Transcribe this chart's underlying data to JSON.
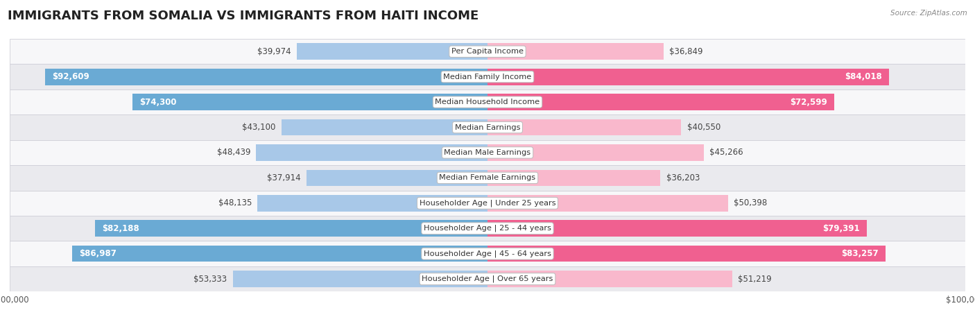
{
  "title": "IMMIGRANTS FROM SOMALIA VS IMMIGRANTS FROM HAITI INCOME",
  "source": "Source: ZipAtlas.com",
  "categories": [
    "Per Capita Income",
    "Median Family Income",
    "Median Household Income",
    "Median Earnings",
    "Median Male Earnings",
    "Median Female Earnings",
    "Householder Age | Under 25 years",
    "Householder Age | 25 - 44 years",
    "Householder Age | 45 - 64 years",
    "Householder Age | Over 65 years"
  ],
  "somalia_values": [
    39974,
    92609,
    74300,
    43100,
    48439,
    37914,
    48135,
    82188,
    86987,
    53333
  ],
  "haiti_values": [
    36849,
    84018,
    72599,
    40550,
    45266,
    36203,
    50398,
    79391,
    83257,
    51219
  ],
  "somalia_labels": [
    "$39,974",
    "$92,609",
    "$74,300",
    "$43,100",
    "$48,439",
    "$37,914",
    "$48,135",
    "$82,188",
    "$86,987",
    "$53,333"
  ],
  "haiti_labels": [
    "$36,849",
    "$84,018",
    "$72,599",
    "$40,550",
    "$45,266",
    "$36,203",
    "$50,398",
    "$79,391",
    "$83,257",
    "$51,219"
  ],
  "max_value": 100000,
  "somalia_color_light": "#a8c8e8",
  "somalia_color_dark": "#6aaad4",
  "haiti_color_light": "#f9b8cc",
  "haiti_color_dark": "#f06090",
  "somalia_threshold": 60000,
  "haiti_threshold": 60000,
  "label_fontsize": 8.5,
  "title_fontsize": 13,
  "axis_label_fontsize": 8.5,
  "row_bg_colors": [
    "#f7f7f9",
    "#eaeaee"
  ],
  "border_color": "#d0d0d8"
}
